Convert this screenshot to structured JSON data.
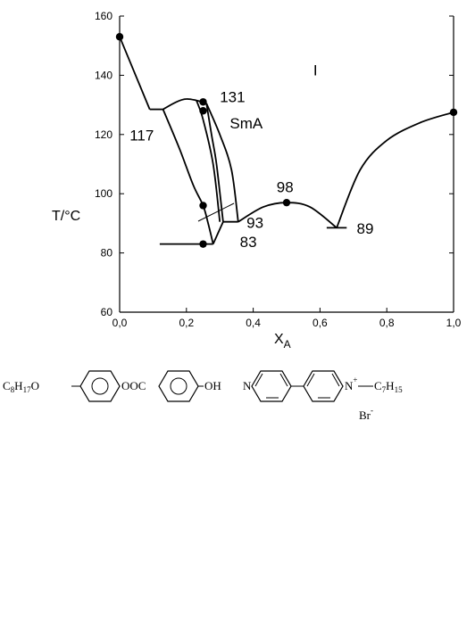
{
  "chart_data": {
    "type": "line",
    "xlabel": "X",
    "xlabel_sub": "A",
    "ylabel": "T/°C",
    "xlim": [
      0,
      1
    ],
    "ylim": [
      60,
      160
    ],
    "x_ticks": [
      "0,0",
      "0,2",
      "0,4",
      "0,6",
      "0,8",
      "1,0"
    ],
    "y_ticks": [
      "60",
      "80",
      "100",
      "120",
      "140",
      "160"
    ],
    "grid": false,
    "curves": [
      {
        "points": [
          [
            0.0,
            153
          ],
          [
            0.09,
            128.5
          ]
        ]
      },
      {
        "points": [
          [
            0.09,
            128.5
          ],
          [
            0.13,
            128.5
          ]
        ]
      },
      {
        "points": [
          [
            0.13,
            128.5
          ],
          [
            0.17,
            131
          ],
          [
            0.2,
            132
          ],
          [
            0.23,
            131.5
          ],
          [
            0.26,
            130.5
          ]
        ]
      },
      {
        "points": [
          [
            0.13,
            128.5
          ],
          [
            0.18,
            115
          ],
          [
            0.22,
            103
          ],
          [
            0.25,
            96
          ],
          [
            0.265,
            90
          ],
          [
            0.28,
            83
          ]
        ]
      },
      {
        "points": [
          [
            0.26,
            130.5
          ],
          [
            0.3,
            120
          ],
          [
            0.335,
            108
          ],
          [
            0.355,
            90.5
          ]
        ]
      },
      {
        "points": [
          [
            0.26,
            130.5
          ],
          [
            0.275,
            120
          ],
          [
            0.29,
            110
          ],
          [
            0.31,
            90.5
          ]
        ]
      },
      {
        "points": [
          [
            0.23,
            131.5
          ],
          [
            0.25,
            125
          ],
          [
            0.28,
            110
          ],
          [
            0.3,
            90.5
          ]
        ]
      },
      {
        "points": [
          [
            0.31,
            90.5
          ],
          [
            0.355,
            90.5
          ]
        ]
      },
      {
        "points": [
          [
            0.28,
            83
          ],
          [
            0.31,
            90.5
          ]
        ]
      },
      {
        "points": [
          [
            0.355,
            90.5
          ],
          [
            0.43,
            95.5
          ],
          [
            0.5,
            97
          ],
          [
            0.57,
            95.5
          ],
          [
            0.65,
            88.5
          ]
        ]
      },
      {
        "points": [
          [
            0.65,
            88.5
          ],
          [
            0.72,
            108
          ],
          [
            0.8,
            118
          ],
          [
            0.9,
            124
          ],
          [
            1.0,
            127.5
          ]
        ]
      },
      {
        "points": [
          [
            0.12,
            83
          ],
          [
            0.28,
            83
          ]
        ]
      },
      {
        "points": [
          [
            0.62,
            88.5
          ],
          [
            0.68,
            88.5
          ]
        ]
      }
    ],
    "points": [
      {
        "x": 0.0,
        "y": 153
      },
      {
        "x": 0.25,
        "y": 131
      },
      {
        "x": 0.25,
        "y": 128
      },
      {
        "x": 0.25,
        "y": 96
      },
      {
        "x": 0.25,
        "y": 83
      },
      {
        "x": 0.5,
        "y": 97
      },
      {
        "x": 1.0,
        "y": 127.5
      }
    ],
    "annotations": [
      {
        "text": "131",
        "x": 0.3,
        "y": 131
      },
      {
        "text": "117",
        "x": 0.03,
        "y": 118
      },
      {
        "text": "SmA",
        "x": 0.33,
        "y": 122
      },
      {
        "text": "I",
        "x": 0.58,
        "y": 140
      },
      {
        "text": "98",
        "x": 0.47,
        "y": 100.5
      },
      {
        "text": "93",
        "x": 0.38,
        "y": 88.5
      },
      {
        "text": "89",
        "x": 0.71,
        "y": 86.5
      },
      {
        "text": "83",
        "x": 0.36,
        "y": 82
      }
    ]
  },
  "structures": {
    "left_prefix": "C",
    "left_prefix_sub": "8",
    "left_prefix_mid": "H",
    "left_prefix_sub2": "17",
    "left_prefix_end": "O",
    "left_linker": "OOC",
    "left_suffix": "OH",
    "right_n": "N",
    "right_nplus": "N",
    "right_charge": "+",
    "right_chain": "C",
    "right_chain_sub": "7",
    "right_chain_mid": "H",
    "right_chain_sub2": "15",
    "right_anion": "Br",
    "right_anion_charge": "-"
  }
}
